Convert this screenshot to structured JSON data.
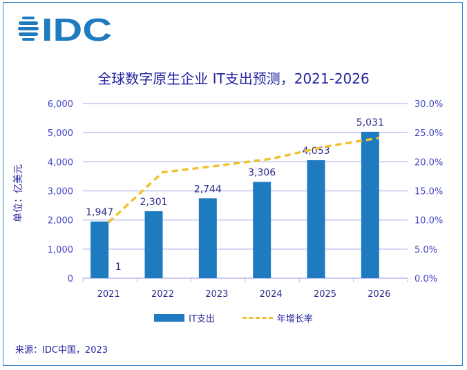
{
  "logo_text": "IDC",
  "brand_color": "#1f7bc0",
  "chart_data": {
    "type": "bar+line",
    "title": "全球数字原生企业 IT支出预测，2021-2026",
    "ylabel": "单位：亿美元",
    "categories": [
      "2021",
      "2022",
      "2023",
      "2024",
      "2025",
      "2026"
    ],
    "series": [
      {
        "name": "IT支出",
        "type": "bar",
        "axis": "left",
        "color": "#1f7bc0",
        "values": [
          1947,
          2301,
          2744,
          3306,
          4053,
          5031
        ],
        "labels": [
          "1,947",
          "2,301",
          "2,744",
          "3,306",
          "4,053",
          "5,031"
        ]
      },
      {
        "name": "年增长率",
        "type": "line",
        "axis": "right",
        "style": "dashed",
        "color": "#f2c12e",
        "values": [
          9.6,
          18.2,
          19.3,
          20.5,
          22.6,
          24.1
        ]
      }
    ],
    "extra_label": "1",
    "y_left": {
      "range": [
        0,
        6000
      ],
      "ticks": [
        "0",
        "1,000",
        "2,000",
        "3,000",
        "4,000",
        "5,000",
        "6,000"
      ]
    },
    "y_right": {
      "range": [
        0,
        30
      ],
      "ticks": [
        "0.0%",
        "5.0%",
        "10.0%",
        "15.0%",
        "20.0%",
        "25.0%",
        "30.0%"
      ]
    },
    "grid": true,
    "legend_placement": "bottom"
  },
  "source": "来源：IDC中国，2023"
}
